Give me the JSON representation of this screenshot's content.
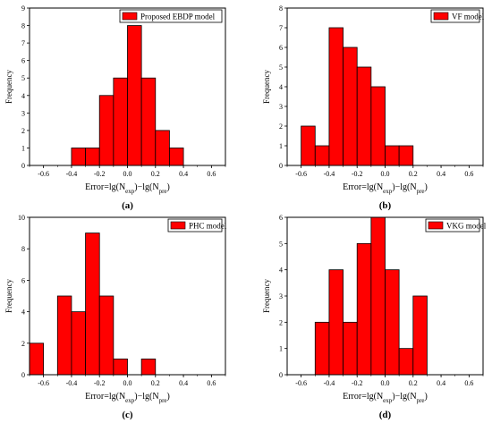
{
  "chart_data": [
    {
      "type": "bar",
      "panel_label": "(a)",
      "legend": "Proposed EBDP model",
      "legend_color": "#ff0000",
      "xlabel_main": "Error=lg(N",
      "xlabel_sub1": "exp",
      "xlabel_mid": ")−lg(N",
      "xlabel_sub2": "pre",
      "xlabel_end": ")",
      "ylabel": "Frequency",
      "xlim": [
        -0.7,
        0.7
      ],
      "ylim": [
        0,
        9
      ],
      "xticks": [
        -0.6,
        -0.4,
        -0.2,
        0.0,
        0.2,
        0.4,
        0.6
      ],
      "xtick_labels": [
        "-0.6",
        "-0.4",
        "-0.2",
        "0.0",
        "0.2",
        "0.4",
        "0.6"
      ],
      "yticks": [
        0,
        1,
        2,
        3,
        4,
        5,
        6,
        7,
        8,
        9
      ],
      "ytick_labels": [
        "0",
        "1",
        "2",
        "3",
        "4",
        "5",
        "6",
        "7",
        "8",
        "9"
      ],
      "bins": [
        [
          -0.4,
          -0.3
        ],
        [
          -0.3,
          -0.2
        ],
        [
          -0.2,
          -0.1
        ],
        [
          -0.1,
          0.0
        ],
        [
          0.0,
          0.1
        ],
        [
          0.1,
          0.2
        ],
        [
          0.2,
          0.3
        ],
        [
          0.3,
          0.4
        ]
      ],
      "values": [
        1,
        1,
        4,
        5,
        8,
        5,
        2,
        1
      ],
      "bar_color": "#ff0000"
    },
    {
      "type": "bar",
      "panel_label": "(b)",
      "legend": "VF model",
      "legend_color": "#ff0000",
      "xlabel_main": "Error=lg(N",
      "xlabel_sub1": "exp",
      "xlabel_mid": ")−lg(N",
      "xlabel_sub2": "pre",
      "xlabel_end": ")",
      "ylabel": "Frequency",
      "xlim": [
        -0.7,
        0.7
      ],
      "ylim": [
        0,
        8
      ],
      "xticks": [
        -0.6,
        -0.4,
        -0.2,
        0.0,
        0.2,
        0.4,
        0.6
      ],
      "xtick_labels": [
        "-0.6",
        "-0.4",
        "-0.2",
        "0.0",
        "0.2",
        "0.4",
        "0.6"
      ],
      "yticks": [
        0,
        1,
        2,
        3,
        4,
        5,
        6,
        7,
        8
      ],
      "ytick_labels": [
        "0",
        "1",
        "2",
        "3",
        "4",
        "5",
        "6",
        "7",
        "8"
      ],
      "bins": [
        [
          -0.6,
          -0.5
        ],
        [
          -0.5,
          -0.4
        ],
        [
          -0.4,
          -0.3
        ],
        [
          -0.3,
          -0.2
        ],
        [
          -0.2,
          -0.1
        ],
        [
          -0.1,
          0.0
        ],
        [
          0.0,
          0.1
        ],
        [
          0.1,
          0.2
        ]
      ],
      "values": [
        2,
        1,
        7,
        6,
        5,
        4,
        1,
        1
      ],
      "bar_color": "#ff0000"
    },
    {
      "type": "bar",
      "panel_label": "(c)",
      "legend": "PHC model",
      "legend_color": "#ff0000",
      "xlabel_main": "Error=lg(N",
      "xlabel_sub1": "exp",
      "xlabel_mid": ")−lg(N",
      "xlabel_sub2": "pre",
      "xlabel_end": ")",
      "ylabel": "Frequency",
      "xlim": [
        -0.7,
        0.7
      ],
      "ylim": [
        0,
        10
      ],
      "xticks": [
        -0.6,
        -0.4,
        -0.2,
        0.0,
        0.2,
        0.4,
        0.6
      ],
      "xtick_labels": [
        "-0.6",
        "-0.4",
        "-0.2",
        "0.0",
        "0.2",
        "0.4",
        "0.6"
      ],
      "yticks": [
        0,
        2,
        4,
        6,
        8,
        10
      ],
      "ytick_labels": [
        "0",
        "2",
        "4",
        "6",
        "8",
        "10"
      ],
      "bins": [
        [
          -0.7,
          -0.6
        ],
        [
          -0.5,
          -0.4
        ],
        [
          -0.4,
          -0.3
        ],
        [
          -0.3,
          -0.2
        ],
        [
          -0.2,
          -0.1
        ],
        [
          -0.1,
          0.0
        ],
        [
          0.1,
          0.2
        ]
      ],
      "values": [
        2,
        5,
        4,
        9,
        5,
        1,
        1
      ],
      "bar_color": "#ff0000"
    },
    {
      "type": "bar",
      "panel_label": "(d)",
      "legend": "VKG model",
      "legend_color": "#ff0000",
      "xlabel_main": "Error=lg(N",
      "xlabel_sub1": "exp",
      "xlabel_mid": ")−lg(N",
      "xlabel_sub2": "pre",
      "xlabel_end": ")",
      "ylabel": "Frequency",
      "xlim": [
        -0.7,
        0.7
      ],
      "ylim": [
        0,
        6
      ],
      "xticks": [
        -0.6,
        -0.4,
        -0.2,
        0.0,
        0.2,
        0.4,
        0.6
      ],
      "xtick_labels": [
        "-0.6",
        "-0.4",
        "-0.2",
        "0.0",
        "0.2",
        "0.4",
        "0.6"
      ],
      "yticks": [
        0,
        1,
        2,
        3,
        4,
        5,
        6
      ],
      "ytick_labels": [
        "0",
        "1",
        "2",
        "3",
        "4",
        "5",
        "6"
      ],
      "bins": [
        [
          -0.5,
          -0.4
        ],
        [
          -0.4,
          -0.3
        ],
        [
          -0.3,
          -0.2
        ],
        [
          -0.2,
          -0.1
        ],
        [
          -0.1,
          0.0
        ],
        [
          0.0,
          0.1
        ],
        [
          0.1,
          0.2
        ],
        [
          0.2,
          0.3
        ]
      ],
      "values": [
        2,
        4,
        2,
        5,
        6,
        4,
        1,
        3
      ],
      "bar_color": "#ff0000"
    }
  ]
}
